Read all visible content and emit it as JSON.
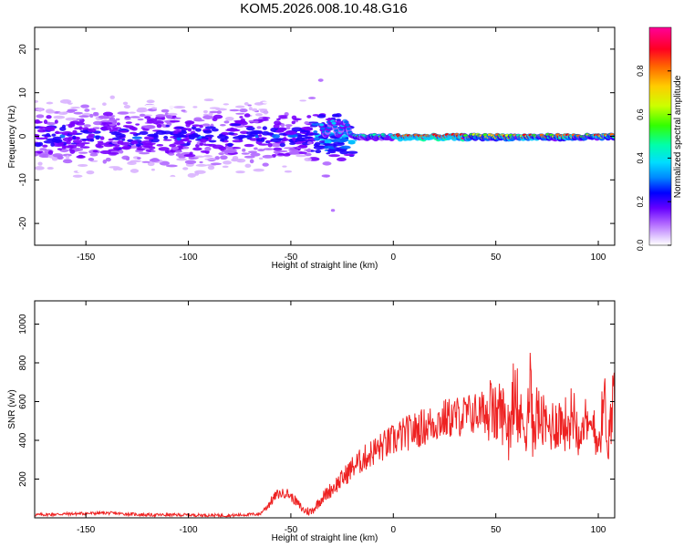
{
  "title": "KOM5.2026.008.10.48.G16",
  "chart_data": [
    {
      "type": "heatmap",
      "name": "spectrogram",
      "xlabel": "Height of straight line (km)",
      "ylabel": "Frequency (Hz)",
      "xlim": [
        -175,
        108
      ],
      "ylim": [
        -25,
        25
      ],
      "xticks": [
        -150,
        -100,
        -50,
        0,
        50,
        100
      ],
      "yticks": [
        -20,
        -10,
        0,
        10,
        20
      ],
      "colorbar": {
        "label": "Normalized spectral amplitude",
        "range": [
          0,
          1
        ],
        "ticks": [
          "0.0",
          "0.2",
          "0.4",
          "0.6",
          "0.8"
        ],
        "colors": [
          "#ffffff",
          "#d9b3ff",
          "#b066ff",
          "#7a00ff",
          "#2200ff",
          "#0066ff",
          "#00ccff",
          "#00ff99",
          "#33ff00",
          "#ccff00",
          "#ffcc00",
          "#ff6600",
          "#ff0000",
          "#ff0066",
          "#ff00aa"
        ]
      },
      "description_regions": [
        {
          "x_range": [
            -175,
            -60
          ],
          "freq_range": [
            -12,
            12
          ],
          "amplitude": 0.15
        },
        {
          "x_range": [
            -60,
            -20
          ],
          "freq_range": [
            -5,
            6
          ],
          "amplitude": 0.3
        },
        {
          "x_range": [
            -20,
            108
          ],
          "freq_range": [
            -2,
            2
          ],
          "amplitude": 0.7
        }
      ]
    },
    {
      "type": "line",
      "name": "snr",
      "xlabel": "Height of straight line (km)",
      "ylabel": "SNR (v/v)",
      "xlim": [
        -175,
        108
      ],
      "ylim": [
        0,
        1120
      ],
      "xticks": [
        -150,
        -100,
        -50,
        0,
        50,
        100
      ],
      "yticks": [
        200,
        400,
        600,
        800,
        1000
      ],
      "color": "#ee2222",
      "series": [
        {
          "name": "SNR",
          "x": [
            -175,
            -160,
            -140,
            -120,
            -100,
            -80,
            -65,
            -60,
            -57,
            -52,
            -48,
            -44,
            -40,
            -35,
            -30,
            -25,
            -20,
            -15,
            -10,
            -5,
            0,
            5,
            10,
            15,
            20,
            25,
            30,
            35,
            40,
            45,
            48,
            50,
            52,
            55,
            60,
            65,
            67,
            68,
            70,
            75,
            80,
            85,
            88,
            90,
            93,
            95,
            98,
            100,
            103,
            105,
            108
          ],
          "y": [
            15,
            20,
            25,
            15,
            15,
            12,
            20,
            80,
            120,
            130,
            90,
            40,
            30,
            100,
            150,
            200,
            260,
            300,
            340,
            370,
            400,
            430,
            450,
            470,
            490,
            510,
            520,
            530,
            540,
            545,
            550,
            520,
            560,
            500,
            520,
            480,
            700,
            430,
            540,
            460,
            500,
            480,
            560,
            450,
            520,
            420,
            500,
            380,
            600,
            400,
            700
          ]
        }
      ]
    }
  ]
}
